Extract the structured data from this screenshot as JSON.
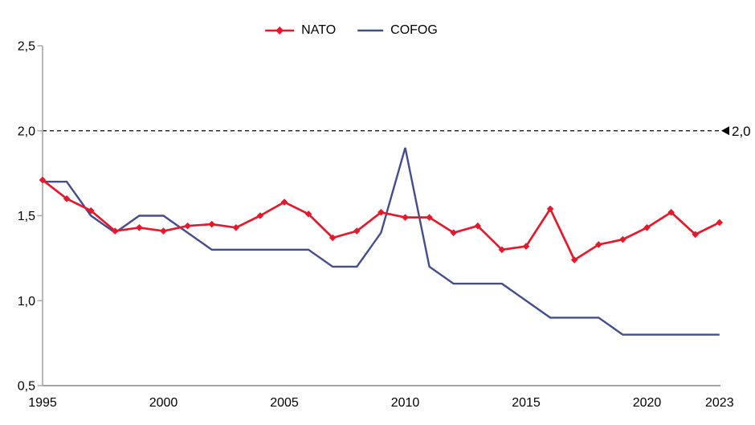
{
  "chart_data": {
    "type": "line",
    "x": [
      1995,
      1996,
      1997,
      1998,
      1999,
      2000,
      2001,
      2002,
      2003,
      2004,
      2005,
      2006,
      2007,
      2008,
      2009,
      2010,
      2011,
      2012,
      2013,
      2014,
      2015,
      2016,
      2017,
      2018,
      2019,
      2020,
      2021,
      2022,
      2023
    ],
    "series": [
      {
        "name": "NATO",
        "color": "#e4192c",
        "marker": "diamond",
        "values": [
          1.71,
          1.6,
          1.53,
          1.41,
          1.43,
          1.41,
          1.44,
          1.45,
          1.43,
          1.5,
          1.58,
          1.51,
          1.37,
          1.41,
          1.52,
          1.49,
          1.49,
          1.4,
          1.44,
          1.3,
          1.32,
          1.54,
          1.24,
          1.33,
          1.36,
          1.43,
          1.52,
          1.39,
          1.46
        ]
      },
      {
        "name": "COFOG",
        "color": "#414d8c",
        "marker": "none",
        "values": [
          1.7,
          1.7,
          1.5,
          1.4,
          1.5,
          1.5,
          1.4,
          1.3,
          1.3,
          1.3,
          1.3,
          1.3,
          1.2,
          1.2,
          1.4,
          1.9,
          1.2,
          1.1,
          1.1,
          1.1,
          1.0,
          0.9,
          0.9,
          0.9,
          0.8,
          0.8,
          0.8,
          0.8,
          0.8
        ]
      }
    ],
    "ylim": [
      0.5,
      2.5
    ],
    "y_tick_values": [
      2.5,
      2.0,
      1.5,
      1.0,
      0.5
    ],
    "y_tick_labels": [
      "2,5",
      "2,0",
      "1,5",
      "1,0",
      "0,5"
    ],
    "x_tick_years": [
      1995,
      2000,
      2005,
      2010,
      2015,
      2020,
      2023
    ],
    "x_tick_labels": [
      "1995",
      "2000",
      "2005",
      "2010",
      "2015",
      "2020",
      "2023"
    ],
    "reference_line": {
      "value": 2.0,
      "label": "2,0",
      "pointer": "◄",
      "style": "dashed",
      "color": "#000000"
    },
    "grid": false,
    "legend_position": "top-center",
    "decimal_separator": "comma",
    "axis_color": "#a6a6a6",
    "text_color": "#000000"
  }
}
